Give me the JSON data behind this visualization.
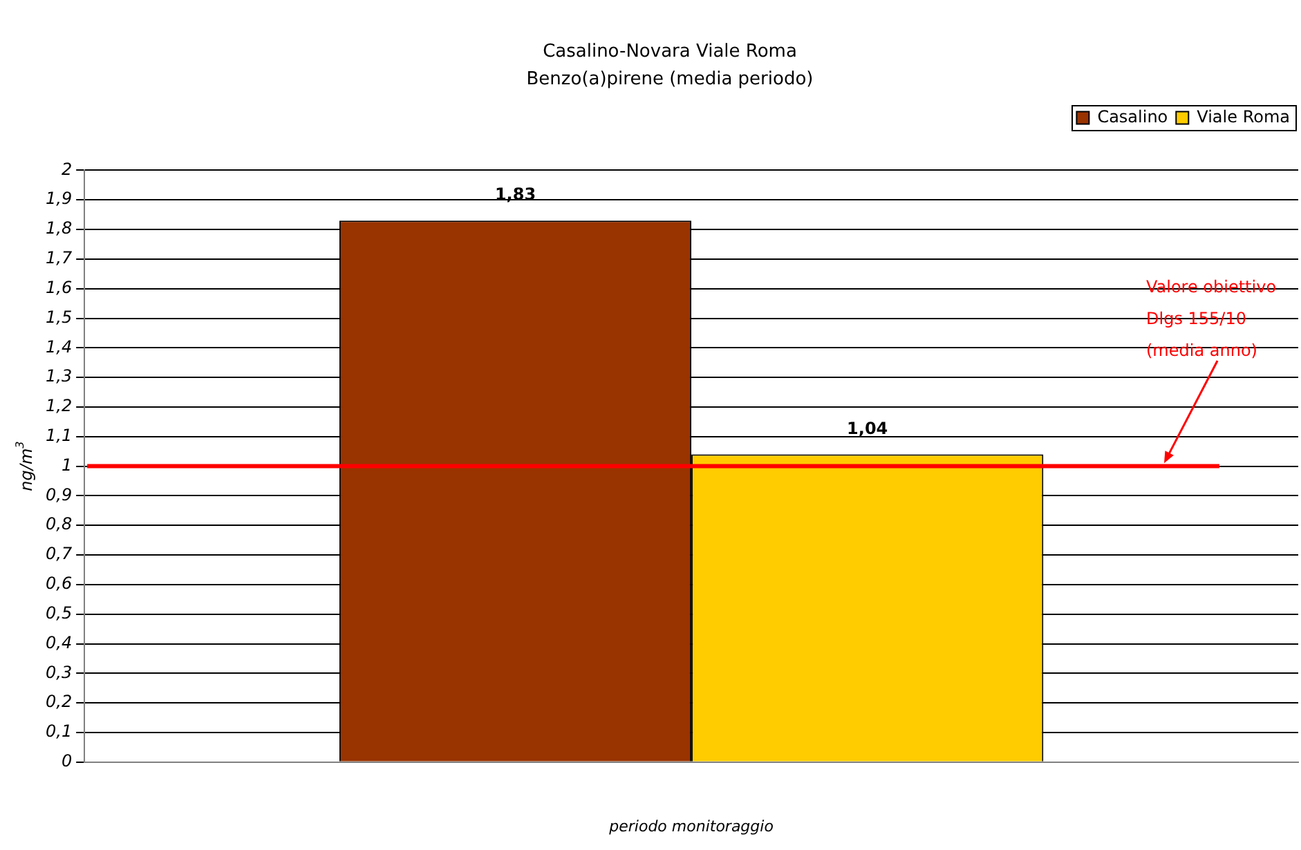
{
  "chart_data": {
    "type": "bar",
    "title": "Casalino-Novara Viale Roma",
    "subtitle": "Benzo(a)pirene (media periodo)",
    "xlabel": "periodo monitoraggio",
    "ylabel": "ng/m$^{3}$",
    "categories": [
      null
    ],
    "series": [
      {
        "name": "Casalino",
        "color": "#993300",
        "values": [
          1.83
        ],
        "value_labels": [
          "1,83"
        ]
      },
      {
        "name": "Viale Roma",
        "color": "#ffcc00",
        "values": [
          1.04
        ],
        "value_labels": [
          "1,04"
        ]
      }
    ],
    "ylim": [
      0,
      2
    ],
    "yticks": [
      0,
      {
        "value": 0.1,
        "label": "0,1"
      },
      {
        "value": 0.2,
        "label": "0,2"
      },
      {
        "value": 0.3,
        "label": "0,3"
      },
      {
        "value": 0.4,
        "label": "0,4"
      },
      {
        "value": 0.5,
        "label": "0,5"
      },
      {
        "value": 0.6,
        "label": "0,6"
      },
      {
        "value": 0.7,
        "label": "0,7"
      },
      {
        "value": 0.8,
        "label": "0,8"
      },
      {
        "value": 0.9,
        "label": "0,9"
      },
      1,
      {
        "value": 1.1,
        "label": "1,1"
      },
      {
        "value": 1.2,
        "label": "1,2"
      },
      {
        "value": 1.3,
        "label": "1,3"
      },
      {
        "value": 1.4,
        "label": "1,4"
      },
      {
        "value": 1.5,
        "label": "1,5"
      },
      {
        "value": 1.6,
        "label": "1,6"
      },
      {
        "value": 1.7,
        "label": "1,7"
      },
      {
        "value": 1.8,
        "label": "1,8"
      },
      {
        "value": 1.9,
        "label": "1,9"
      },
      2
    ],
    "ref_lines": [
      {
        "axis": "y",
        "value": 1,
        "label": "Valore obiettivo\nDlgs 155/10\n(media anno)",
        "color": "#ff0000"
      }
    ],
    "grid": "y",
    "legend": "top right"
  }
}
